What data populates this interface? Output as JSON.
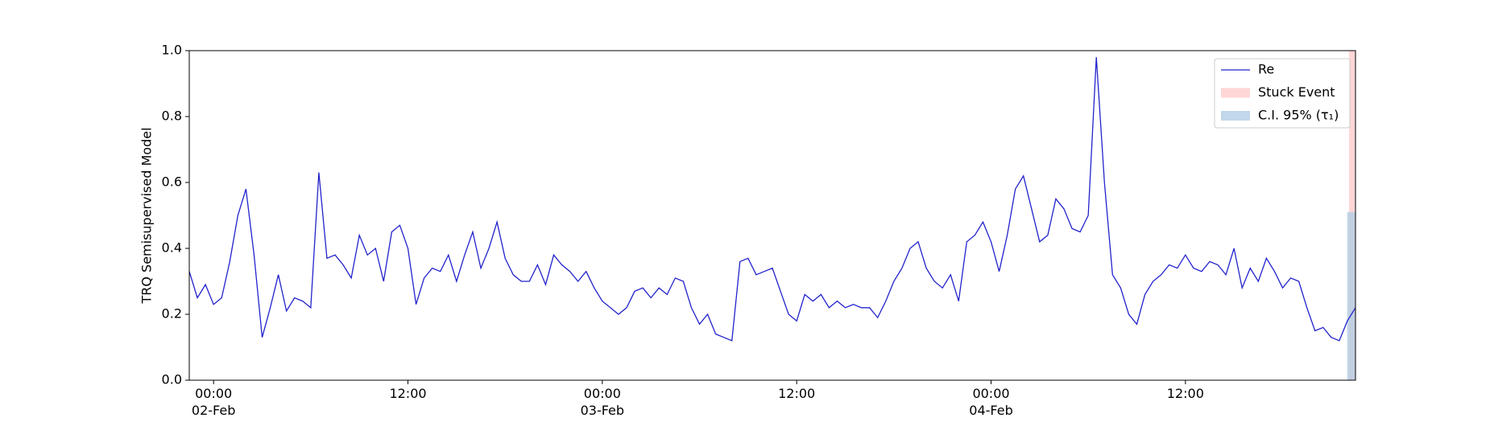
{
  "chart_data": {
    "type": "line",
    "ylabel": "TRQ Semisupervised Model",
    "xlim": [
      "1900-02-01 22:30",
      "1900-02-04 22:30"
    ],
    "xticks": [
      {
        "value": "1900-02-02 00:00",
        "label": "00:00\n02-Feb\n1900"
      },
      {
        "value": "1900-02-02 12:00",
        "label": "12:00"
      },
      {
        "value": "1900-02-03 00:00",
        "label": "00:00\n03-Feb"
      },
      {
        "value": "1900-02-03 12:00",
        "label": "12:00"
      },
      {
        "value": "1900-02-04 00:00",
        "label": "00:00\n04-Feb"
      },
      {
        "value": "1900-02-04 12:00",
        "label": "12:00"
      }
    ],
    "ylim": [
      0,
      1
    ],
    "yticks": [
      {
        "value": 0,
        "label": "0.0"
      },
      0.2,
      0.4,
      0.6,
      0.8,
      {
        "value": 1,
        "label": "1.0"
      }
    ],
    "legend": "upper right",
    "x": [
      "1900-02-01 22:30",
      "1900-02-01 23:00",
      "1900-02-01 23:30",
      "1900-02-02 00:00",
      "1900-02-02 00:30",
      "1900-02-02 01:00",
      "1900-02-02 01:30",
      "1900-02-02 02:00",
      "1900-02-02 02:30",
      "1900-02-02 03:00",
      "1900-02-02 03:30",
      "1900-02-02 04:00",
      "1900-02-02 04:30",
      "1900-02-02 05:00",
      "1900-02-02 05:30",
      "1900-02-02 06:00",
      "1900-02-02 06:30",
      "1900-02-02 07:00",
      "1900-02-02 07:30",
      "1900-02-02 08:00",
      "1900-02-02 08:30",
      "1900-02-02 09:00",
      "1900-02-02 09:30",
      "1900-02-02 10:00",
      "1900-02-02 10:30",
      "1900-02-02 11:00",
      "1900-02-02 11:30",
      "1900-02-02 12:00",
      "1900-02-02 12:30",
      "1900-02-02 13:00",
      "1900-02-02 13:30",
      "1900-02-02 14:00",
      "1900-02-02 14:30",
      "1900-02-02 15:00",
      "1900-02-02 15:30",
      "1900-02-02 16:00",
      "1900-02-02 16:30",
      "1900-02-02 17:00",
      "1900-02-02 17:30",
      "1900-02-02 18:00",
      "1900-02-02 18:30",
      "1900-02-02 19:00",
      "1900-02-02 19:30",
      "1900-02-02 20:00",
      "1900-02-02 20:30",
      "1900-02-02 21:00",
      "1900-02-02 21:30",
      "1900-02-02 22:00",
      "1900-02-02 22:30",
      "1900-02-02 23:00",
      "1900-02-02 23:30",
      "1900-02-03 00:00",
      "1900-02-03 00:30",
      "1900-02-03 01:00",
      "1900-02-03 01:30",
      "1900-02-03 02:00",
      "1900-02-03 02:30",
      "1900-02-03 03:00",
      "1900-02-03 03:30",
      "1900-02-03 04:00",
      "1900-02-03 04:30",
      "1900-02-03 05:00",
      "1900-02-03 05:30",
      "1900-02-03 06:00",
      "1900-02-03 06:30",
      "1900-02-03 07:00",
      "1900-02-03 07:30",
      "1900-02-03 08:00",
      "1900-02-03 08:30",
      "1900-02-03 09:00",
      "1900-02-03 09:30",
      "1900-02-03 10:00",
      "1900-02-03 10:30",
      "1900-02-03 11:00",
      "1900-02-03 11:30",
      "1900-02-03 12:00",
      "1900-02-03 12:30",
      "1900-02-03 13:00",
      "1900-02-03 13:30",
      "1900-02-03 14:00",
      "1900-02-03 14:30",
      "1900-02-03 15:00",
      "1900-02-03 15:30",
      "1900-02-03 16:00",
      "1900-02-03 16:30",
      "1900-02-03 17:00",
      "1900-02-03 17:30",
      "1900-02-03 18:00",
      "1900-02-03 18:30",
      "1900-02-03 19:00",
      "1900-02-03 19:30",
      "1900-02-03 20:00",
      "1900-02-03 20:30",
      "1900-02-03 21:00",
      "1900-02-03 21:30",
      "1900-02-03 22:00",
      "1900-02-03 22:30",
      "1900-02-03 23:00",
      "1900-02-03 23:30",
      "1900-02-04 00:00",
      "1900-02-04 00:30",
      "1900-02-04 01:00",
      "1900-02-04 01:30",
      "1900-02-04 02:00",
      "1900-02-04 02:30",
      "1900-02-04 03:00",
      "1900-02-04 03:30",
      "1900-02-04 04:00",
      "1900-02-04 04:30",
      "1900-02-04 05:00",
      "1900-02-04 05:30",
      "1900-02-04 06:00",
      "1900-02-04 06:30",
      "1900-02-04 07:00",
      "1900-02-04 07:30",
      "1900-02-04 08:00",
      "1900-02-04 08:30",
      "1900-02-04 09:00",
      "1900-02-04 09:30",
      "1900-02-04 10:00",
      "1900-02-04 10:30",
      "1900-02-04 11:00",
      "1900-02-04 11:30",
      "1900-02-04 12:00",
      "1900-02-04 12:30",
      "1900-02-04 13:00",
      "1900-02-04 13:30",
      "1900-02-04 14:00",
      "1900-02-04 14:30",
      "1900-02-04 15:00",
      "1900-02-04 15:30",
      "1900-02-04 16:00",
      "1900-02-04 16:30",
      "1900-02-04 17:00",
      "1900-02-04 17:30",
      "1900-02-04 18:00",
      "1900-02-04 18:30",
      "1900-02-04 19:00",
      "1900-02-04 19:30",
      "1900-02-04 20:00",
      "1900-02-04 20:30",
      "1900-02-04 21:00",
      "1900-02-04 21:30",
      "1900-02-04 22:00",
      "1900-02-04 22:30"
    ],
    "series": [
      {
        "name": "Re",
        "color": "#2222cc",
        "values": [
          0.33,
          0.25,
          0.29,
          0.23,
          0.25,
          0.36,
          0.5,
          0.58,
          0.38,
          0.13,
          0.22,
          0.32,
          0.21,
          0.25,
          0.24,
          0.22,
          0.63,
          0.37,
          0.38,
          0.35,
          0.31,
          0.44,
          0.38,
          0.4,
          0.3,
          0.45,
          0.47,
          0.4,
          0.23,
          0.31,
          0.34,
          0.33,
          0.38,
          0.3,
          0.38,
          0.45,
          0.34,
          0.4,
          0.48,
          0.37,
          0.32,
          0.3,
          0.3,
          0.35,
          0.29,
          0.38,
          0.35,
          0.33,
          0.3,
          0.33,
          0.28,
          0.24,
          0.22,
          0.2,
          0.22,
          0.27,
          0.28,
          0.25,
          0.28,
          0.26,
          0.31,
          0.3,
          0.22,
          0.17,
          0.2,
          0.14,
          0.13,
          0.12,
          0.36,
          0.37,
          0.32,
          0.33,
          0.34,
          0.27,
          0.2,
          0.18,
          0.26,
          0.24,
          0.26,
          0.22,
          0.24,
          0.22,
          0.23,
          0.22,
          0.22,
          0.19,
          0.24,
          0.3,
          0.34,
          0.4,
          0.42,
          0.34,
          0.3,
          0.28,
          0.32,
          0.24,
          0.42,
          0.44,
          0.48,
          0.42,
          0.33,
          0.44,
          0.58,
          0.62,
          0.52,
          0.42,
          0.44,
          0.55,
          0.52,
          0.46,
          0.45,
          0.5,
          0.98,
          0.6,
          0.32,
          0.28,
          0.2,
          0.17,
          0.26,
          0.3,
          0.32,
          0.35,
          0.34,
          0.38,
          0.34,
          0.33,
          0.36,
          0.35,
          0.32,
          0.4,
          0.28,
          0.34,
          0.3,
          0.37,
          0.33,
          0.28,
          0.31,
          0.3,
          0.22,
          0.15,
          0.16,
          0.13,
          0.12,
          0.18,
          0.22
        ]
      }
    ],
    "spans": [
      {
        "name": "Stuck Event",
        "color": "#ffcccc",
        "x": [
          "1900-02-04 22:06",
          "1900-02-04 22:30"
        ],
        "y": [
          0,
          1
        ]
      },
      {
        "name": "C.I. 95% (τ₁)",
        "color": "#b3cde3",
        "x": [
          "1900-02-04 21:59",
          "1900-02-04 22:30"
        ],
        "y": [
          0,
          0.51
        ]
      }
    ]
  }
}
